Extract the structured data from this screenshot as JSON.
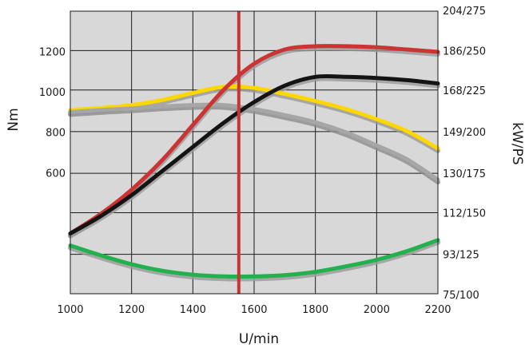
{
  "chart_data": {
    "type": "line",
    "xlabel": "U/min",
    "ylabel": "Nm",
    "y2label": "kW/PS",
    "xlim": [
      1000,
      2200
    ],
    "ylim": [
      0,
      1400
    ],
    "y2lim": [
      75,
      204
    ],
    "grid": true,
    "background_color": "#d8d8d8",
    "x_ticks": [
      1000,
      1200,
      1400,
      1600,
      1800,
      2000,
      2200
    ],
    "y_ticks": [
      600,
      800,
      1000,
      1200
    ],
    "y2_ticks": [
      {
        "value": 75,
        "label": "75/100"
      },
      {
        "value": 93,
        "label": "93/125"
      },
      {
        "value": 112,
        "label": "112/150"
      },
      {
        "value": 130,
        "label": "130/175"
      },
      {
        "value": 149,
        "label": "149/200"
      },
      {
        "value": 168,
        "label": "168/225"
      },
      {
        "value": 186,
        "label": "186/250"
      },
      {
        "value": 204,
        "label": "204/275"
      }
    ],
    "marker_line": {
      "x": 1550,
      "color": "#cc3333"
    },
    "series": [
      {
        "axis": "left",
        "color": "#ffd700",
        "shadow": "#9a9a9a",
        "x": [
          1000,
          1100,
          1200,
          1300,
          1400,
          1500,
          1600,
          1700,
          1800,
          1900,
          2000,
          2100,
          2200
        ],
        "y": [
          910,
          920,
          935,
          960,
          995,
          1025,
          1020,
          990,
          955,
          915,
          865,
          805,
          720
        ]
      },
      {
        "axis": "left",
        "color": "#a6a6a6",
        "shadow": "#8c8c8c",
        "x": [
          1000,
          1100,
          1200,
          1300,
          1400,
          1500,
          1600,
          1700,
          1800,
          1900,
          2000,
          2100,
          2200
        ],
        "y": [
          900,
          910,
          918,
          928,
          935,
          935,
          915,
          885,
          850,
          800,
          735,
          665,
          565
        ]
      },
      {
        "axis": "right",
        "color": "#cc3333",
        "shadow": "#9a9a9a",
        "x": [
          1000,
          1100,
          1200,
          1300,
          1400,
          1500,
          1600,
          1700,
          1800,
          1900,
          2000,
          2100,
          2200
        ],
        "y": [
          102.5,
          111.5,
          122.5,
          136,
          152,
          168,
          180,
          186.5,
          188,
          188,
          187.5,
          186.5,
          185.4
        ]
      },
      {
        "axis": "right",
        "color": "#141414",
        "shadow": "#9a9a9a",
        "x": [
          1000,
          1100,
          1200,
          1300,
          1400,
          1500,
          1600,
          1700,
          1800,
          1900,
          2000,
          2100,
          2200
        ],
        "y": [
          102.5,
          110.5,
          120,
          131,
          142,
          153,
          162.5,
          170,
          174,
          174,
          173.5,
          172.5,
          171
        ]
      },
      {
        "axis": "right",
        "color": "#22b14c",
        "shadow": "#9a9a9a",
        "x": [
          1000,
          1100,
          1200,
          1300,
          1400,
          1500,
          1600,
          1700,
          1800,
          1900,
          2000,
          2100,
          2200
        ],
        "y": [
          97,
          92.5,
          88.5,
          85.5,
          83.7,
          82.9,
          82.9,
          83.5,
          85,
          87.5,
          90.5,
          94.5,
          99.5
        ]
      }
    ]
  }
}
